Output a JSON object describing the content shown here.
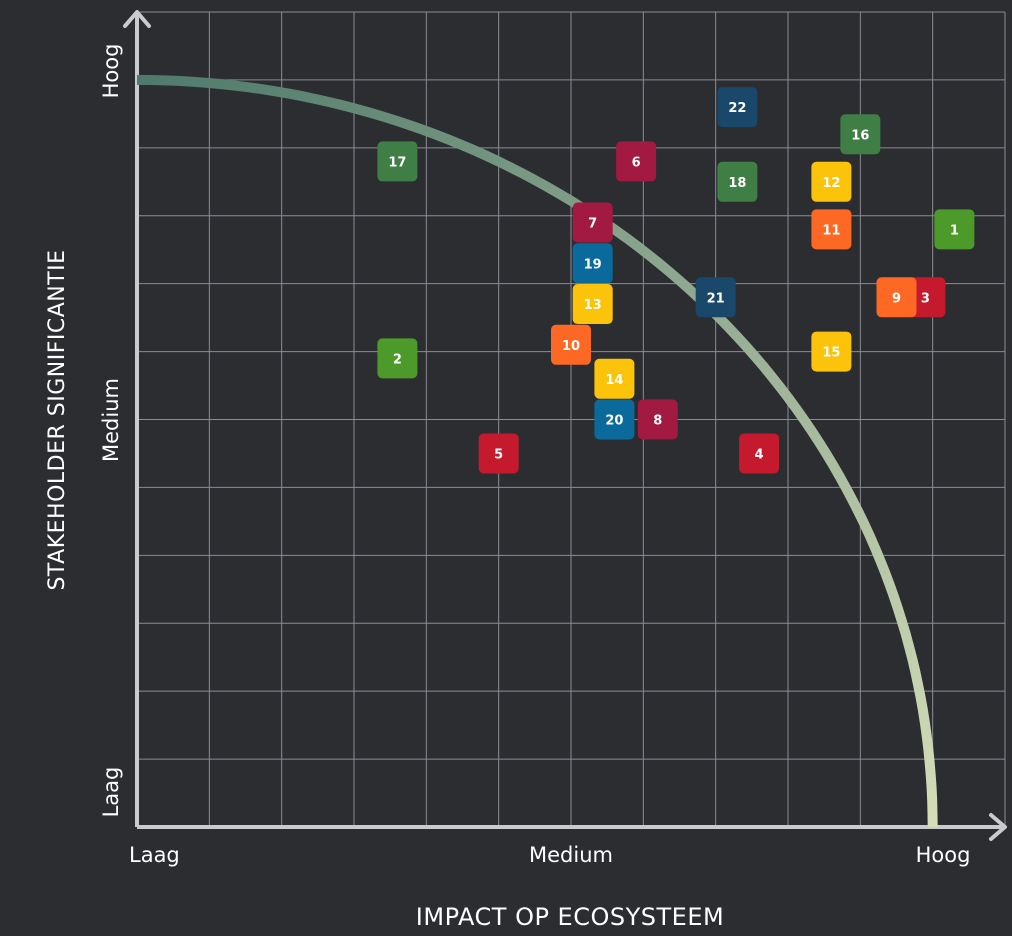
{
  "chart_data": {
    "type": "scatter",
    "xlabel": "IMPACT OP ECOSYSTEEM",
    "ylabel": "STAKEHOLDER SIGNIFICANTIE",
    "x_ticks": [
      {
        "value": 0,
        "label": "Laag"
      },
      {
        "value": 6,
        "label": "Medium"
      },
      {
        "value": 11,
        "label": "Hoog"
      }
    ],
    "y_ticks": [
      {
        "value": 1,
        "label": "Laag"
      },
      {
        "value": 6,
        "label": "Medium"
      },
      {
        "value": 11,
        "label": "Hoog"
      }
    ],
    "xlim": [
      0,
      12
    ],
    "ylim": [
      0,
      12
    ],
    "grid": true,
    "curve": {
      "radius_x": 11,
      "radius_y": 11,
      "start_x": 0,
      "colors": [
        "#4f7a6a",
        "#d4dcb8"
      ]
    },
    "points": [
      {
        "label": "1",
        "x": 11.3,
        "y": 8.8,
        "color": "#4c9a2a"
      },
      {
        "label": "2",
        "x": 3.6,
        "y": 6.9,
        "color": "#4c9a2a"
      },
      {
        "label": "3",
        "x": 10.9,
        "y": 7.8,
        "color": "#c5192d"
      },
      {
        "label": "4",
        "x": 8.6,
        "y": 5.5,
        "color": "#c5192d"
      },
      {
        "label": "5",
        "x": 5.0,
        "y": 5.5,
        "color": "#c5192d"
      },
      {
        "label": "6",
        "x": 6.9,
        "y": 9.8,
        "color": "#a21942"
      },
      {
        "label": "7",
        "x": 6.3,
        "y": 8.9,
        "color": "#a21942"
      },
      {
        "label": "8",
        "x": 7.2,
        "y": 6.0,
        "color": "#a21942"
      },
      {
        "label": "9",
        "x": 10.5,
        "y": 7.8,
        "color": "#fd6925"
      },
      {
        "label": "10",
        "x": 6.0,
        "y": 7.1,
        "color": "#fd6925"
      },
      {
        "label": "11",
        "x": 9.6,
        "y": 8.8,
        "color": "#fd6925"
      },
      {
        "label": "12",
        "x": 9.6,
        "y": 9.5,
        "color": "#fcc30b"
      },
      {
        "label": "13",
        "x": 6.3,
        "y": 7.7,
        "color": "#fcc30b"
      },
      {
        "label": "14",
        "x": 6.6,
        "y": 6.6,
        "color": "#fcc30b"
      },
      {
        "label": "15",
        "x": 9.6,
        "y": 7.0,
        "color": "#fcc30b"
      },
      {
        "label": "16",
        "x": 10.0,
        "y": 10.2,
        "color": "#3f7e44"
      },
      {
        "label": "17",
        "x": 3.6,
        "y": 9.8,
        "color": "#3f7e44"
      },
      {
        "label": "18",
        "x": 8.3,
        "y": 9.5,
        "color": "#3f7e44"
      },
      {
        "label": "19",
        "x": 6.3,
        "y": 8.3,
        "color": "#0a6a9c"
      },
      {
        "label": "20",
        "x": 6.6,
        "y": 6.0,
        "color": "#0a6a9c"
      },
      {
        "label": "21",
        "x": 8.0,
        "y": 7.8,
        "color": "#19486a"
      },
      {
        "label": "22",
        "x": 8.3,
        "y": 10.6,
        "color": "#19486a"
      }
    ]
  }
}
